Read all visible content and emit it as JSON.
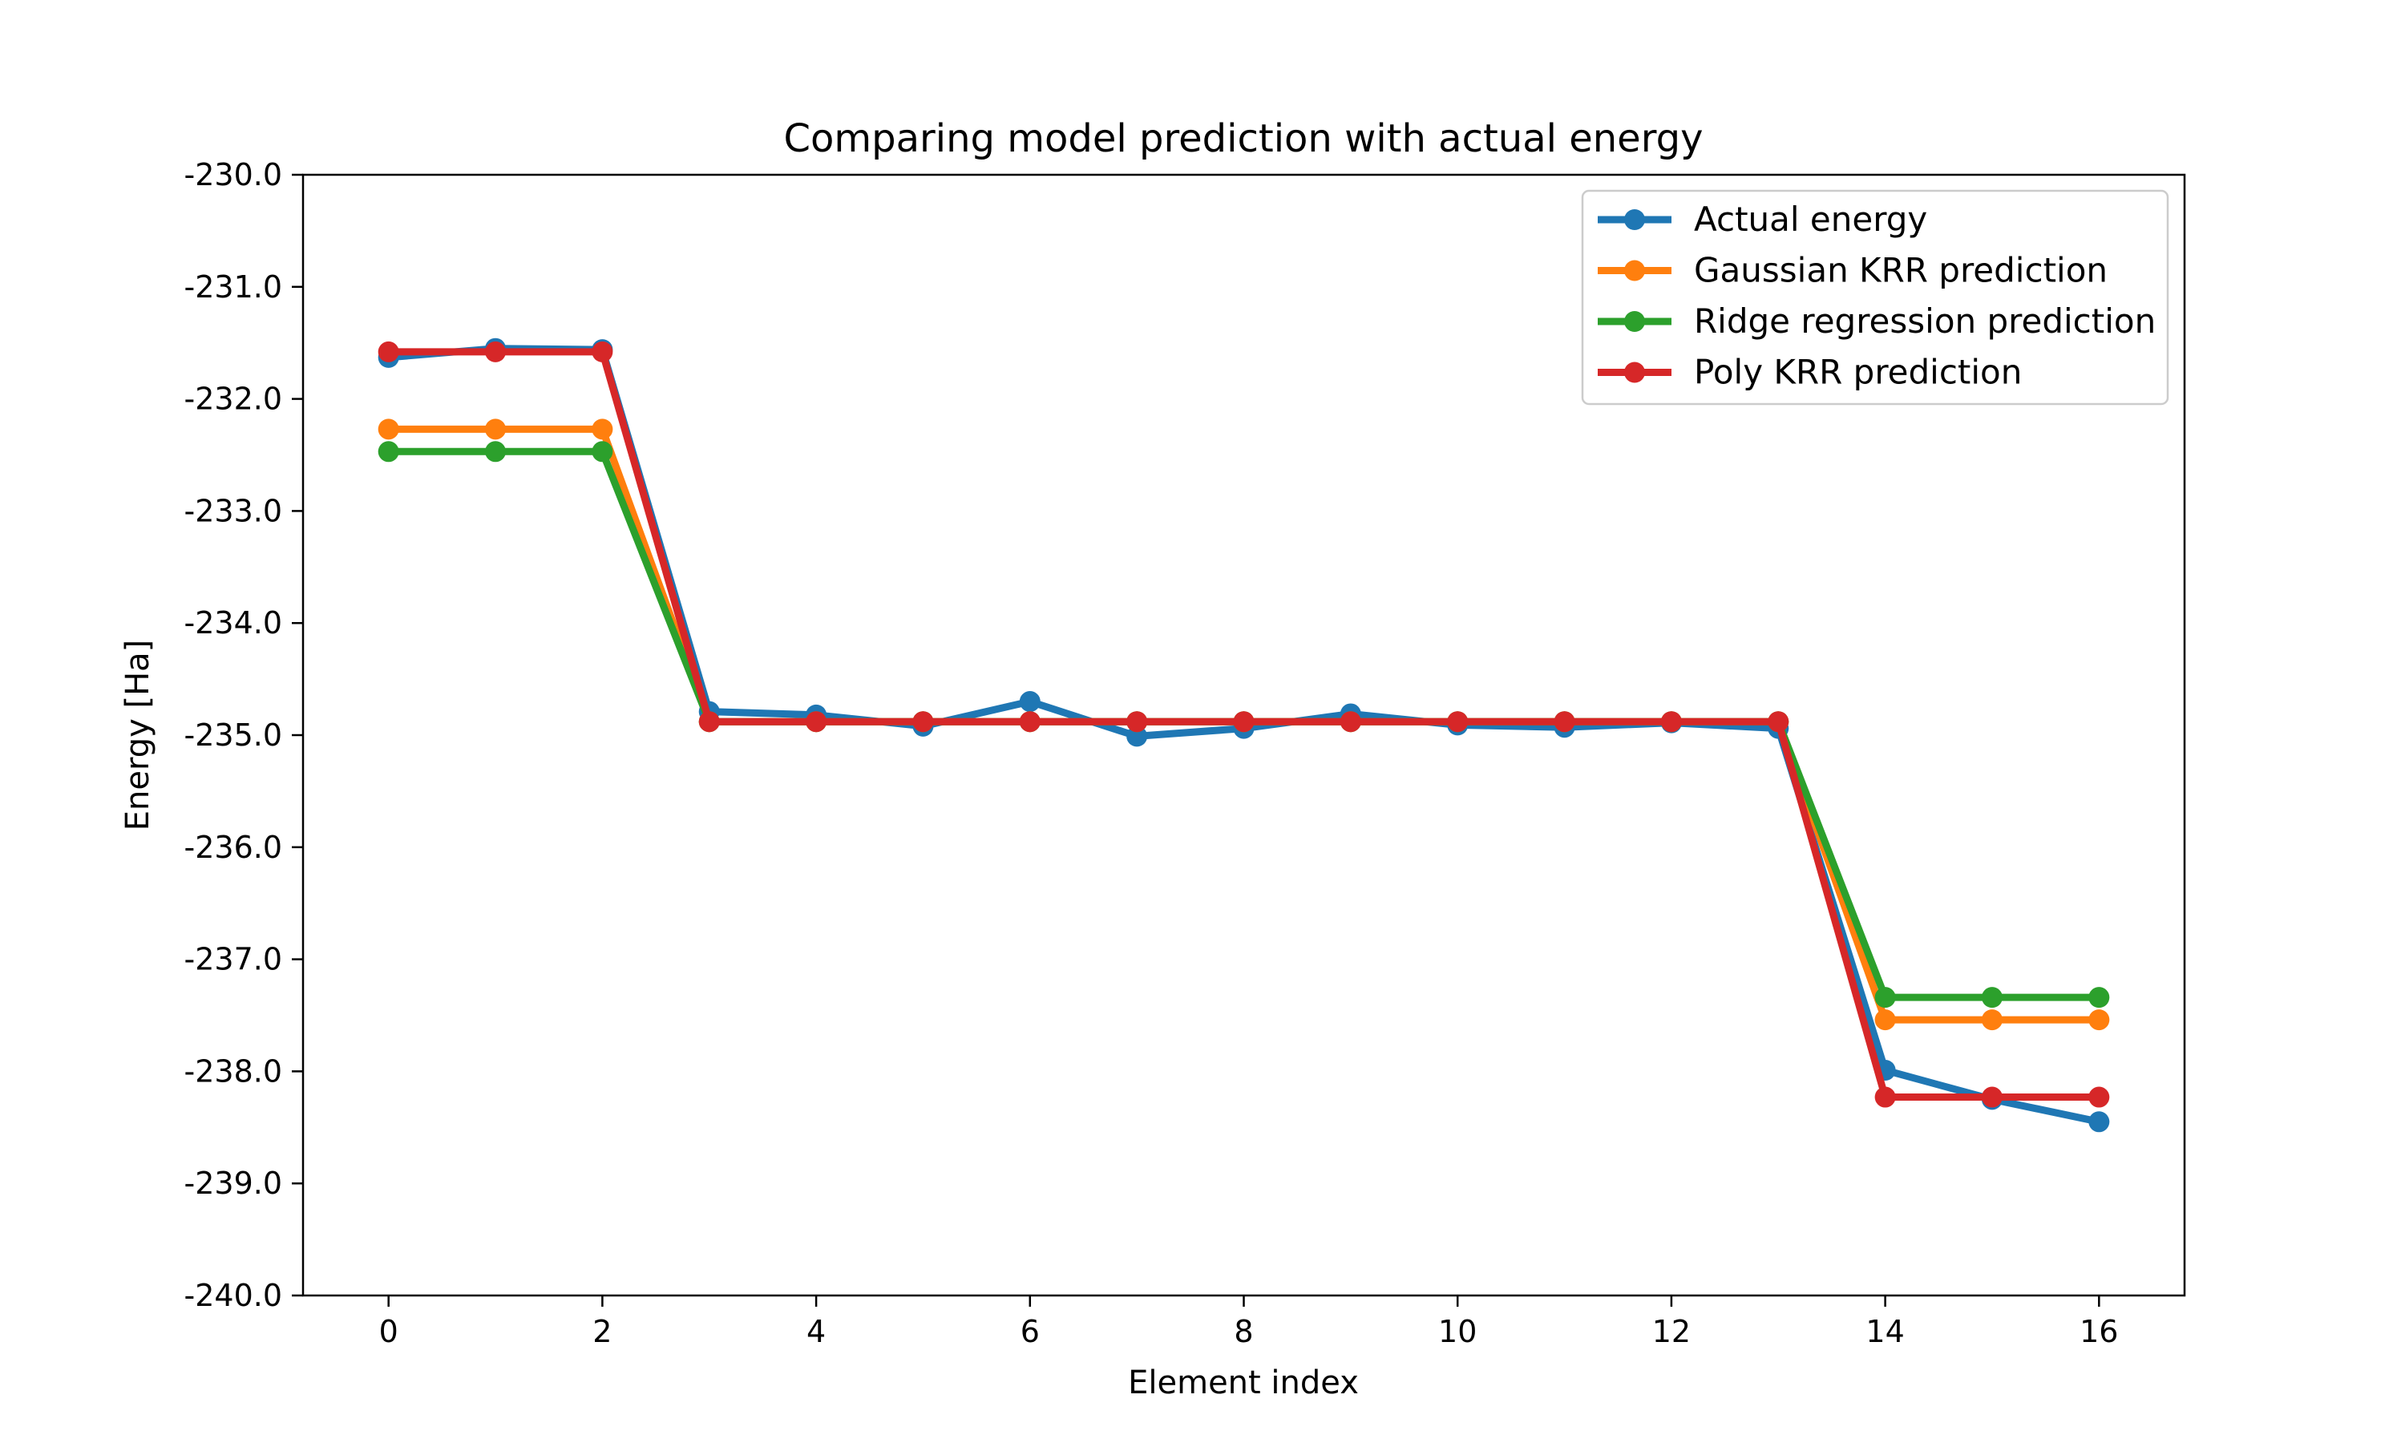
{
  "chart_data": {
    "type": "line",
    "title": "Comparing model prediction with actual energy",
    "xlabel": "Element index",
    "ylabel": "Energy [Ha]",
    "xlim": [
      -0.8,
      16.8
    ],
    "ylim": [
      -240.0,
      -230.0
    ],
    "xticks": [
      0,
      2,
      4,
      6,
      8,
      10,
      12,
      14,
      16
    ],
    "xtick_labels": [
      "0",
      "2",
      "4",
      "6",
      "8",
      "10",
      "12",
      "14",
      "16"
    ],
    "yticks": [
      -230.0,
      -231.0,
      -232.0,
      -233.0,
      -234.0,
      -235.0,
      -236.0,
      -237.0,
      -238.0,
      -239.0,
      -240.0
    ],
    "ytick_labels": [
      "-230.0",
      "-231.0",
      "-232.0",
      "-233.0",
      "-234.0",
      "-235.0",
      "-236.0",
      "-237.0",
      "-238.0",
      "-239.0",
      "-240.0"
    ],
    "grid": false,
    "legend_position": "top-right",
    "x": [
      0,
      1,
      2,
      3,
      4,
      5,
      6,
      7,
      8,
      9,
      10,
      11,
      12,
      13,
      14,
      15,
      16
    ],
    "series": [
      {
        "name": "Actual energy",
        "color": "#1f77b4",
        "values": [
          -231.63,
          -231.55,
          -231.56,
          -234.79,
          -234.82,
          -234.92,
          -234.7,
          -235.01,
          -234.94,
          -234.81,
          -234.91,
          -234.93,
          -234.89,
          -234.94,
          -237.99,
          -238.25,
          -238.45
        ]
      },
      {
        "name": "Gaussian KRR prediction",
        "color": "#ff7f0e",
        "values": [
          -232.27,
          -232.27,
          -232.27,
          -234.88,
          -234.88,
          -234.88,
          -234.88,
          -234.88,
          -234.88,
          -234.88,
          -234.88,
          -234.88,
          -234.88,
          -234.88,
          -237.54,
          -237.54,
          -237.54
        ]
      },
      {
        "name": "Ridge regression prediction",
        "color": "#2ca02c",
        "values": [
          -232.47,
          -232.47,
          -232.47,
          -234.88,
          -234.88,
          -234.88,
          -234.88,
          -234.88,
          -234.88,
          -234.88,
          -234.88,
          -234.88,
          -234.88,
          -234.88,
          -237.34,
          -237.34,
          -237.34
        ]
      },
      {
        "name": "Poly KRR prediction",
        "color": "#d62728",
        "values": [
          -231.58,
          -231.58,
          -231.58,
          -234.88,
          -234.88,
          -234.88,
          -234.88,
          -234.88,
          -234.88,
          -234.88,
          -234.88,
          -234.88,
          -234.88,
          -234.88,
          -238.23,
          -238.23,
          -238.23
        ]
      }
    ]
  }
}
